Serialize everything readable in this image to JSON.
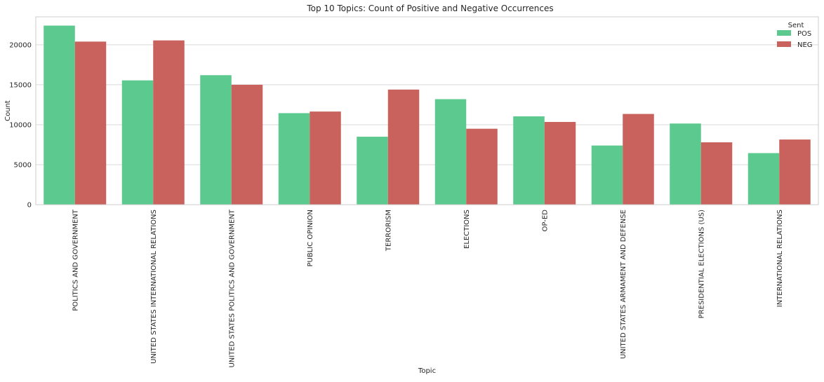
{
  "chart_data": {
    "type": "bar",
    "title": "Top 10 Topics: Count of Positive and Negative Occurrences",
    "xlabel": "Topic",
    "ylabel": "Count",
    "ylim": [
      0,
      23500
    ],
    "yticks": [
      0,
      5000,
      10000,
      15000,
      20000
    ],
    "grid": true,
    "legend": {
      "title": "Sent",
      "position": "top-right"
    },
    "categories": [
      "POLITICS AND GOVERNMENT",
      "UNITED STATES INTERNATIONAL RELATIONS",
      "UNITED STATES POLITICS AND GOVERNMENT",
      "PUBLIC OPINION",
      "TERRORISM",
      "ELECTIONS",
      "OP-ED",
      "UNITED STATES ARMAMENT AND DEFENSE",
      "PRESIDENTIAL ELECTIONS (US)",
      "INTERNATIONAL RELATIONS"
    ],
    "series": [
      {
        "name": "POS",
        "color": "#5cc98e",
        "values": [
          22400,
          15550,
          16200,
          11450,
          8500,
          13200,
          11050,
          7400,
          10150,
          6450
        ]
      },
      {
        "name": "NEG",
        "color": "#c9625c",
        "values": [
          20400,
          20550,
          15000,
          11650,
          14400,
          9500,
          10350,
          11350,
          7800,
          8150
        ]
      }
    ]
  }
}
